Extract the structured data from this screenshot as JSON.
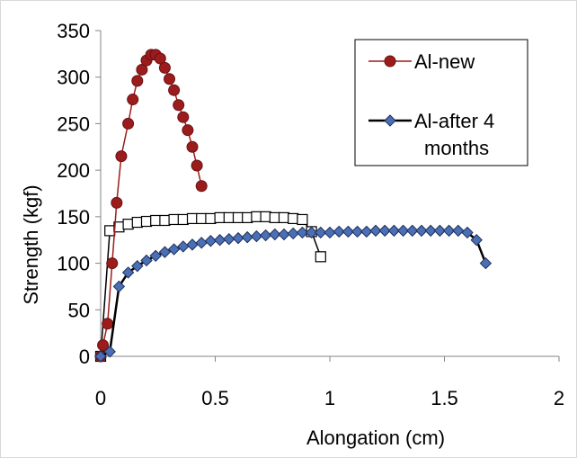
{
  "chart_data": {
    "type": "scatter",
    "xlabel": "Alongation (cm)",
    "ylabel": "Strength (kgf)",
    "xlim": [
      0,
      2
    ],
    "ylim": [
      0,
      350
    ],
    "x_ticks": [
      "0",
      "0.5",
      "1",
      "1.5",
      "2"
    ],
    "y_ticks": [
      "0",
      "50",
      "100",
      "150",
      "200",
      "250",
      "300",
      "350"
    ],
    "grid": false,
    "legend_position": "top-right",
    "series": [
      {
        "name": "Al-new",
        "color": "#9b1c1c",
        "marker": "circle",
        "points": [
          [
            0.0,
            0
          ],
          [
            0.01,
            12
          ],
          [
            0.03,
            35
          ],
          [
            0.05,
            100
          ],
          [
            0.07,
            165
          ],
          [
            0.09,
            215
          ],
          [
            0.12,
            250
          ],
          [
            0.14,
            276
          ],
          [
            0.16,
            296
          ],
          [
            0.18,
            308
          ],
          [
            0.2,
            318
          ],
          [
            0.22,
            324
          ],
          [
            0.24,
            324
          ],
          [
            0.26,
            320
          ],
          [
            0.28,
            310
          ],
          [
            0.3,
            298
          ],
          [
            0.32,
            286
          ],
          [
            0.34,
            270
          ],
          [
            0.36,
            257
          ],
          [
            0.38,
            243
          ],
          [
            0.4,
            225
          ],
          [
            0.42,
            205
          ],
          [
            0.44,
            183
          ]
        ]
      },
      {
        "name": "Al-after 4 months",
        "color": "#4a6fb5",
        "line_color": "#000000",
        "marker": "diamond",
        "points": [
          [
            0.0,
            0
          ],
          [
            0.04,
            5
          ],
          [
            0.08,
            75
          ],
          [
            0.12,
            90
          ],
          [
            0.16,
            97
          ],
          [
            0.2,
            103
          ],
          [
            0.24,
            108
          ],
          [
            0.28,
            112
          ],
          [
            0.32,
            115
          ],
          [
            0.36,
            118
          ],
          [
            0.4,
            120
          ],
          [
            0.44,
            122
          ],
          [
            0.48,
            124
          ],
          [
            0.52,
            125
          ],
          [
            0.56,
            126
          ],
          [
            0.6,
            127
          ],
          [
            0.64,
            128
          ],
          [
            0.68,
            129
          ],
          [
            0.72,
            130
          ],
          [
            0.76,
            131
          ],
          [
            0.8,
            131
          ],
          [
            0.84,
            132
          ],
          [
            0.88,
            133
          ],
          [
            0.92,
            133
          ],
          [
            0.96,
            133
          ],
          [
            1.0,
            133
          ],
          [
            1.04,
            134
          ],
          [
            1.08,
            134
          ],
          [
            1.12,
            134
          ],
          [
            1.16,
            134
          ],
          [
            1.2,
            135
          ],
          [
            1.24,
            135
          ],
          [
            1.28,
            135
          ],
          [
            1.32,
            135
          ],
          [
            1.36,
            135
          ],
          [
            1.4,
            135
          ],
          [
            1.44,
            135
          ],
          [
            1.48,
            135
          ],
          [
            1.52,
            135
          ],
          [
            1.56,
            135
          ],
          [
            1.6,
            133
          ],
          [
            1.64,
            125
          ],
          [
            1.68,
            100
          ]
        ]
      },
      {
        "color": "#000000",
        "marker": "square",
        "marker_fill": "#ffffff",
        "points": [
          [
            0.0,
            0
          ],
          [
            0.04,
            135
          ],
          [
            0.08,
            139
          ],
          [
            0.12,
            142
          ],
          [
            0.16,
            144
          ],
          [
            0.2,
            145
          ],
          [
            0.24,
            146
          ],
          [
            0.28,
            146
          ],
          [
            0.32,
            147
          ],
          [
            0.36,
            147
          ],
          [
            0.4,
            148
          ],
          [
            0.44,
            148
          ],
          [
            0.48,
            148
          ],
          [
            0.52,
            149
          ],
          [
            0.56,
            149
          ],
          [
            0.6,
            149
          ],
          [
            0.64,
            149
          ],
          [
            0.68,
            150
          ],
          [
            0.72,
            150
          ],
          [
            0.76,
            149
          ],
          [
            0.8,
            149
          ],
          [
            0.84,
            148
          ],
          [
            0.88,
            147
          ],
          [
            0.92,
            134
          ],
          [
            0.96,
            107
          ]
        ]
      }
    ]
  }
}
